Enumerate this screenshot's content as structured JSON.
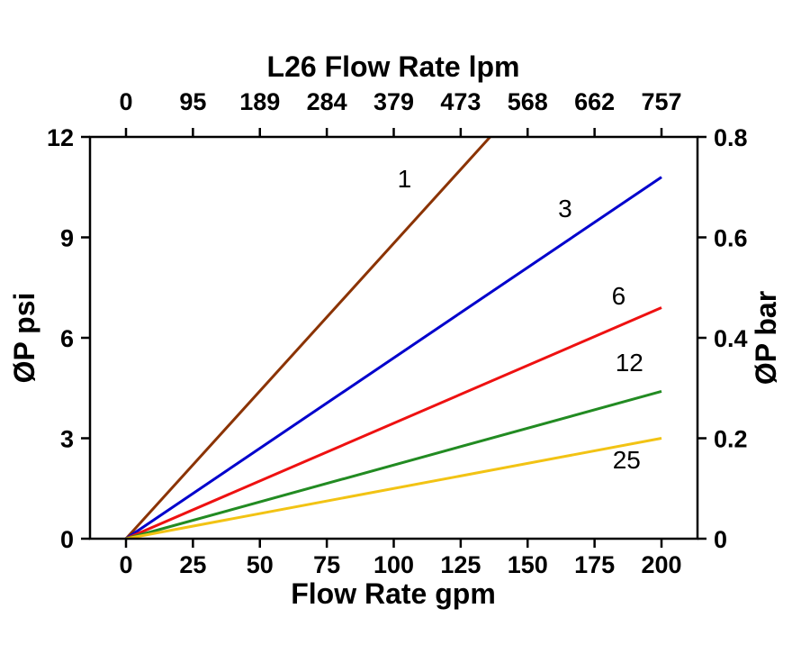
{
  "chart_data": {
    "type": "line",
    "title": "L26 Flow Rate lpm",
    "background": "#FFFFFF",
    "frame_color": "#000000",
    "grid": false,
    "legend": "inline-labels",
    "x_top": {
      "label": "L26 Flow Rate lpm",
      "ticks": [
        0,
        95,
        189,
        284,
        379,
        473,
        568,
        662,
        757
      ]
    },
    "x_bottom": {
      "label": "Flow Rate gpm",
      "ticks": [
        0,
        25,
        50,
        75,
        100,
        125,
        150,
        175,
        200
      ],
      "range": [
        0,
        200
      ]
    },
    "y_left": {
      "label": "ØP psi",
      "ticks": [
        0,
        3,
        6,
        9,
        12
      ],
      "range": [
        0,
        12
      ]
    },
    "y_right": {
      "label": "ØP bar",
      "ticks": [
        0,
        0.2,
        0.4,
        0.6,
        0.8
      ]
    },
    "series": [
      {
        "name": "1",
        "color": "#8B3303",
        "points": [
          [
            0,
            0
          ],
          [
            136,
            12
          ]
        ],
        "label_at": [
          104,
          10.5
        ]
      },
      {
        "name": "3",
        "color": "#0000CC",
        "points": [
          [
            0,
            0
          ],
          [
            200,
            10.8
          ]
        ],
        "label_at": [
          164,
          9.6
        ]
      },
      {
        "name": "6",
        "color": "#EE1111",
        "points": [
          [
            0,
            0
          ],
          [
            200,
            6.9
          ]
        ],
        "label_at": [
          184,
          7.0
        ]
      },
      {
        "name": "12",
        "color": "#228B22",
        "points": [
          [
            0,
            0
          ],
          [
            200,
            4.4
          ]
        ],
        "label_at": [
          188,
          5.0
        ]
      },
      {
        "name": "25",
        "color": "#F2C314",
        "points": [
          [
            0,
            0
          ],
          [
            200,
            3.0
          ]
        ],
        "label_at": [
          187,
          2.1
        ]
      }
    ]
  }
}
